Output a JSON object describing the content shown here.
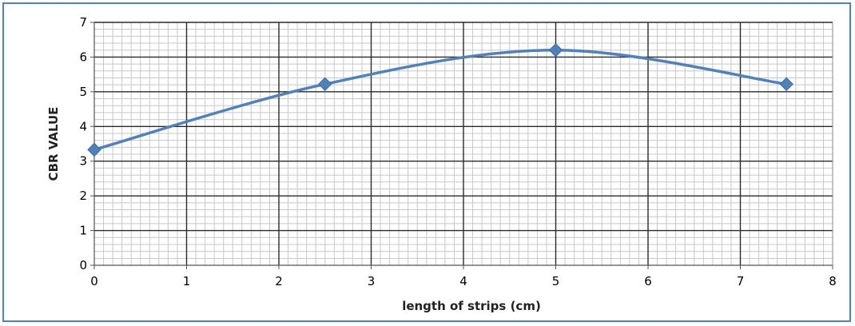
{
  "chart_data": {
    "type": "line",
    "title": "",
    "xlabel": "length of strips (cm)",
    "ylabel": "CBR VALUE",
    "xlim": [
      0,
      8
    ],
    "ylim": [
      0,
      7
    ],
    "x_ticks": [
      "0",
      "1",
      "2",
      "3",
      "4",
      "5",
      "6",
      "7",
      "8"
    ],
    "y_ticks": [
      "0",
      "1",
      "2",
      "3",
      "4",
      "5",
      "6",
      "7"
    ],
    "grid": true,
    "smooth": true,
    "series": [
      {
        "x": [
          0,
          2.5,
          5,
          7.5
        ],
        "values": [
          3.33,
          5.22,
          6.2,
          5.22
        ],
        "color": "#4f81bd",
        "marker": "diamond"
      }
    ]
  }
}
